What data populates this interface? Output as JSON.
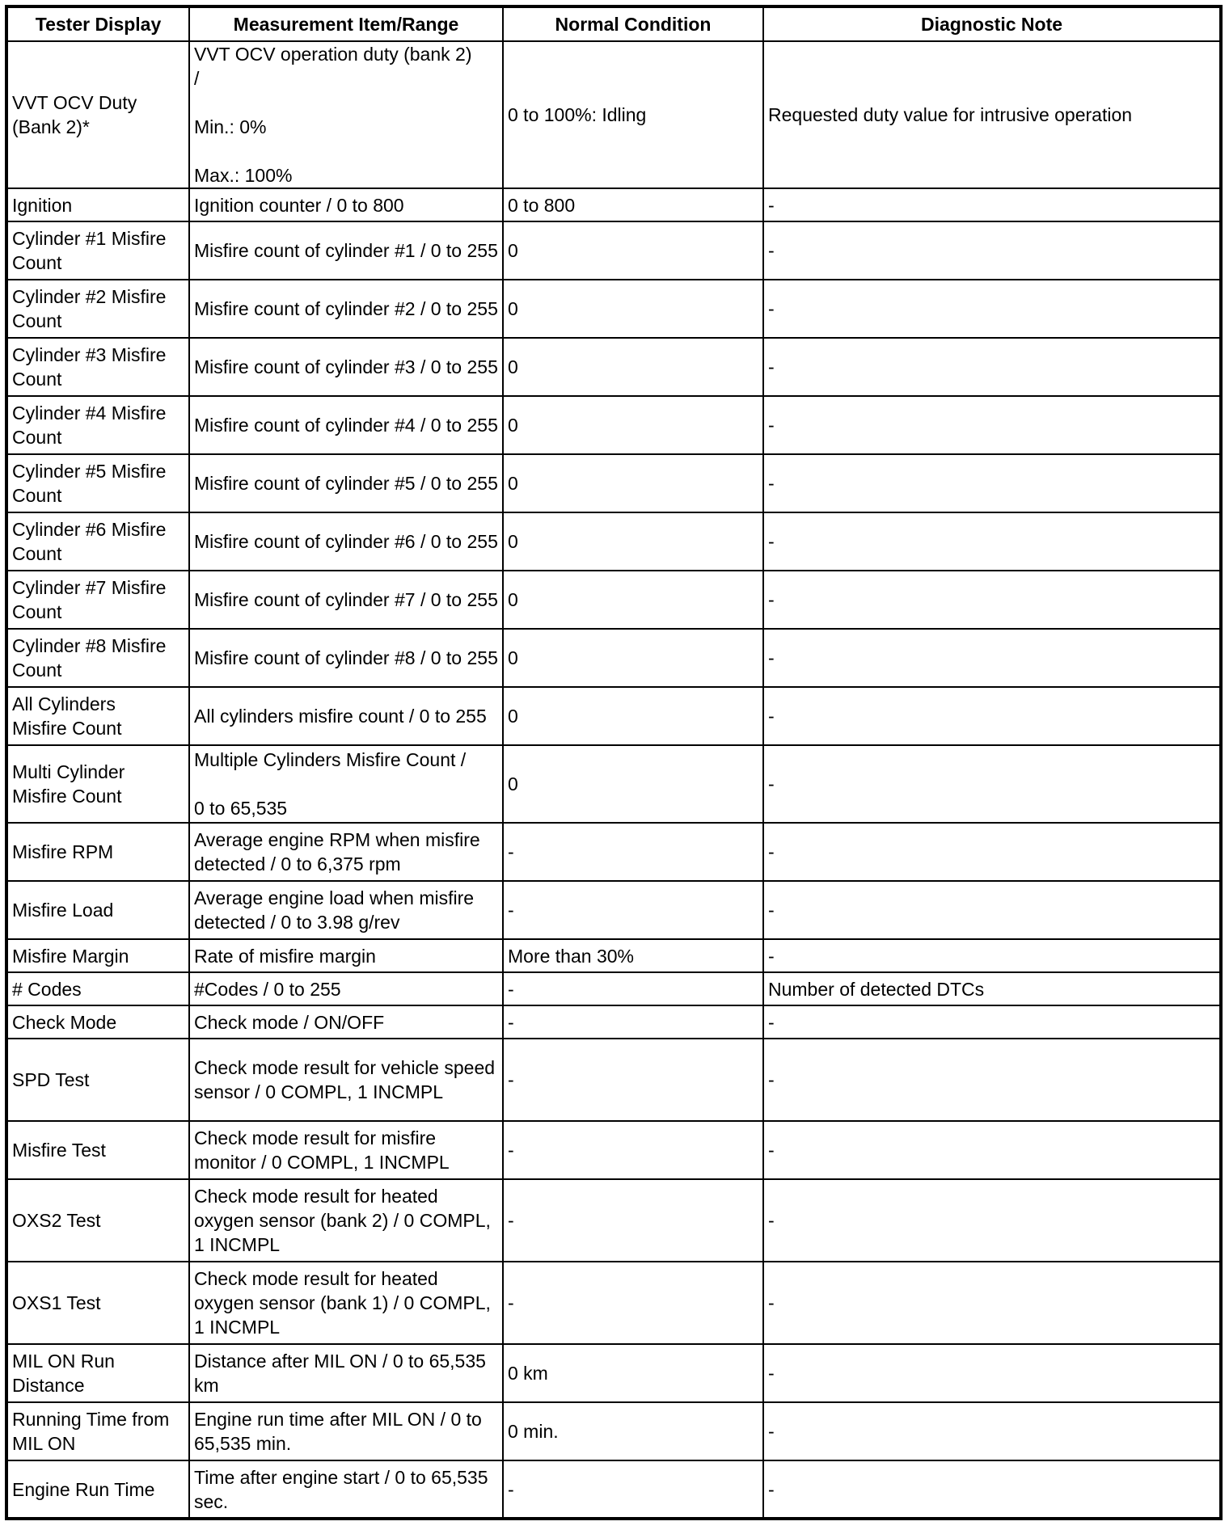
{
  "headers": [
    "Tester Display",
    "Measurement Item/Range",
    "Normal Condition",
    "Diagnostic Note"
  ],
  "rows": [
    {
      "h": "rv",
      "cells": [
        "VVT OCV Duty\n(Bank 2)*",
        "VVT OCV operation duty (bank 2)\n/\n\nMin.: 0%\n\nMax.: 100%",
        "0 to 100%: Idling",
        "Requested duty value for intrusive operation"
      ]
    },
    {
      "h": "r1",
      "cells": [
        "Ignition",
        "Ignition counter / 0 to 800",
        "0 to 800",
        "-"
      ]
    },
    {
      "h": "r2",
      "cells": [
        "Cylinder #1 Misfire Count",
        "Misfire count of cylinder #1 / 0 to 255",
        "0",
        "-"
      ]
    },
    {
      "h": "r2",
      "cells": [
        "Cylinder #2 Misfire Count",
        "Misfire count of cylinder #2 / 0 to 255",
        "0",
        "-"
      ]
    },
    {
      "h": "r2",
      "cells": [
        "Cylinder #3 Misfire Count",
        "Misfire count of cylinder #3 / 0 to 255",
        "0",
        "-"
      ]
    },
    {
      "h": "r2",
      "cells": [
        "Cylinder #4 Misfire Count",
        "Misfire count of cylinder #4 / 0 to 255",
        "0",
        "-"
      ]
    },
    {
      "h": "r2",
      "cells": [
        "Cylinder #5 Misfire Count",
        "Misfire count of cylinder #5 / 0 to 255",
        "0",
        "-"
      ]
    },
    {
      "h": "r2",
      "cells": [
        "Cylinder #6 Misfire Count",
        "Misfire count of cylinder #6 / 0 to 255",
        "0",
        "-"
      ]
    },
    {
      "h": "r2",
      "cells": [
        "Cylinder #7 Misfire Count",
        "Misfire count of cylinder #7 / 0 to 255",
        "0",
        "-"
      ]
    },
    {
      "h": "r2",
      "cells": [
        "Cylinder #8 Misfire Count",
        "Misfire count of cylinder #8 / 0 to 255",
        "0",
        "-"
      ]
    },
    {
      "h": "r2",
      "cells": [
        "All Cylinders\nMisfire Count",
        "All cylinders misfire count / 0 to 255",
        "0",
        "-"
      ]
    },
    {
      "h": "rm",
      "cells": [
        "Multi Cylinder\nMisfire Count",
        "Multiple Cylinders Misfire Count /\n\n0 to 65,535",
        "0",
        "-"
      ]
    },
    {
      "h": "r2",
      "cells": [
        "Misfire RPM",
        "Average engine RPM when misfire detected / 0 to 6,375 rpm",
        "-",
        "-"
      ]
    },
    {
      "h": "r2",
      "cells": [
        "Misfire Load",
        "Average engine load when misfire detected / 0 to 3.98 g/rev",
        "-",
        "-"
      ]
    },
    {
      "h": "r1",
      "cells": [
        "Misfire Margin",
        "Rate of misfire margin",
        "More than 30%",
        "-"
      ]
    },
    {
      "h": "r1",
      "cells": [
        "# Codes",
        "#Codes / 0 to 255",
        "-",
        "Number of detected DTCs"
      ]
    },
    {
      "h": "r1",
      "cells": [
        "Check Mode",
        "Check mode / ON/OFF",
        "-",
        "-"
      ]
    },
    {
      "h": "r3",
      "cells": [
        "SPD Test",
        "Check mode result for vehicle speed sensor / 0 COMPL, 1 INCMPL",
        "-",
        "-"
      ]
    },
    {
      "h": "r2",
      "cells": [
        "Misfire Test",
        "Check mode result for misfire monitor / 0 COMPL, 1 INCMPL",
        "-",
        "-"
      ]
    },
    {
      "h": "r3",
      "cells": [
        "OXS2 Test",
        "Check mode result for heated oxygen sensor (bank 2) / 0 COMPL, 1 INCMPL",
        "-",
        "-"
      ]
    },
    {
      "h": "r3",
      "cells": [
        "OXS1 Test",
        "Check mode result for heated oxygen sensor (bank 1) / 0 COMPL, 1 INCMPL",
        "-",
        "-"
      ]
    },
    {
      "h": "r2",
      "cells": [
        "MIL ON Run\nDistance",
        "Distance after MIL ON / 0 to 65,535 km",
        "0 km",
        "-"
      ]
    },
    {
      "h": "r2",
      "cells": [
        "Running Time from MIL ON",
        "Engine run time after MIL ON / 0 to 65,535 min.",
        "0 min.",
        "-"
      ]
    },
    {
      "h": "r2",
      "cells": [
        "Engine Run Time",
        "Time after engine start / 0 to 65,535 sec.",
        "-",
        "-"
      ]
    }
  ]
}
